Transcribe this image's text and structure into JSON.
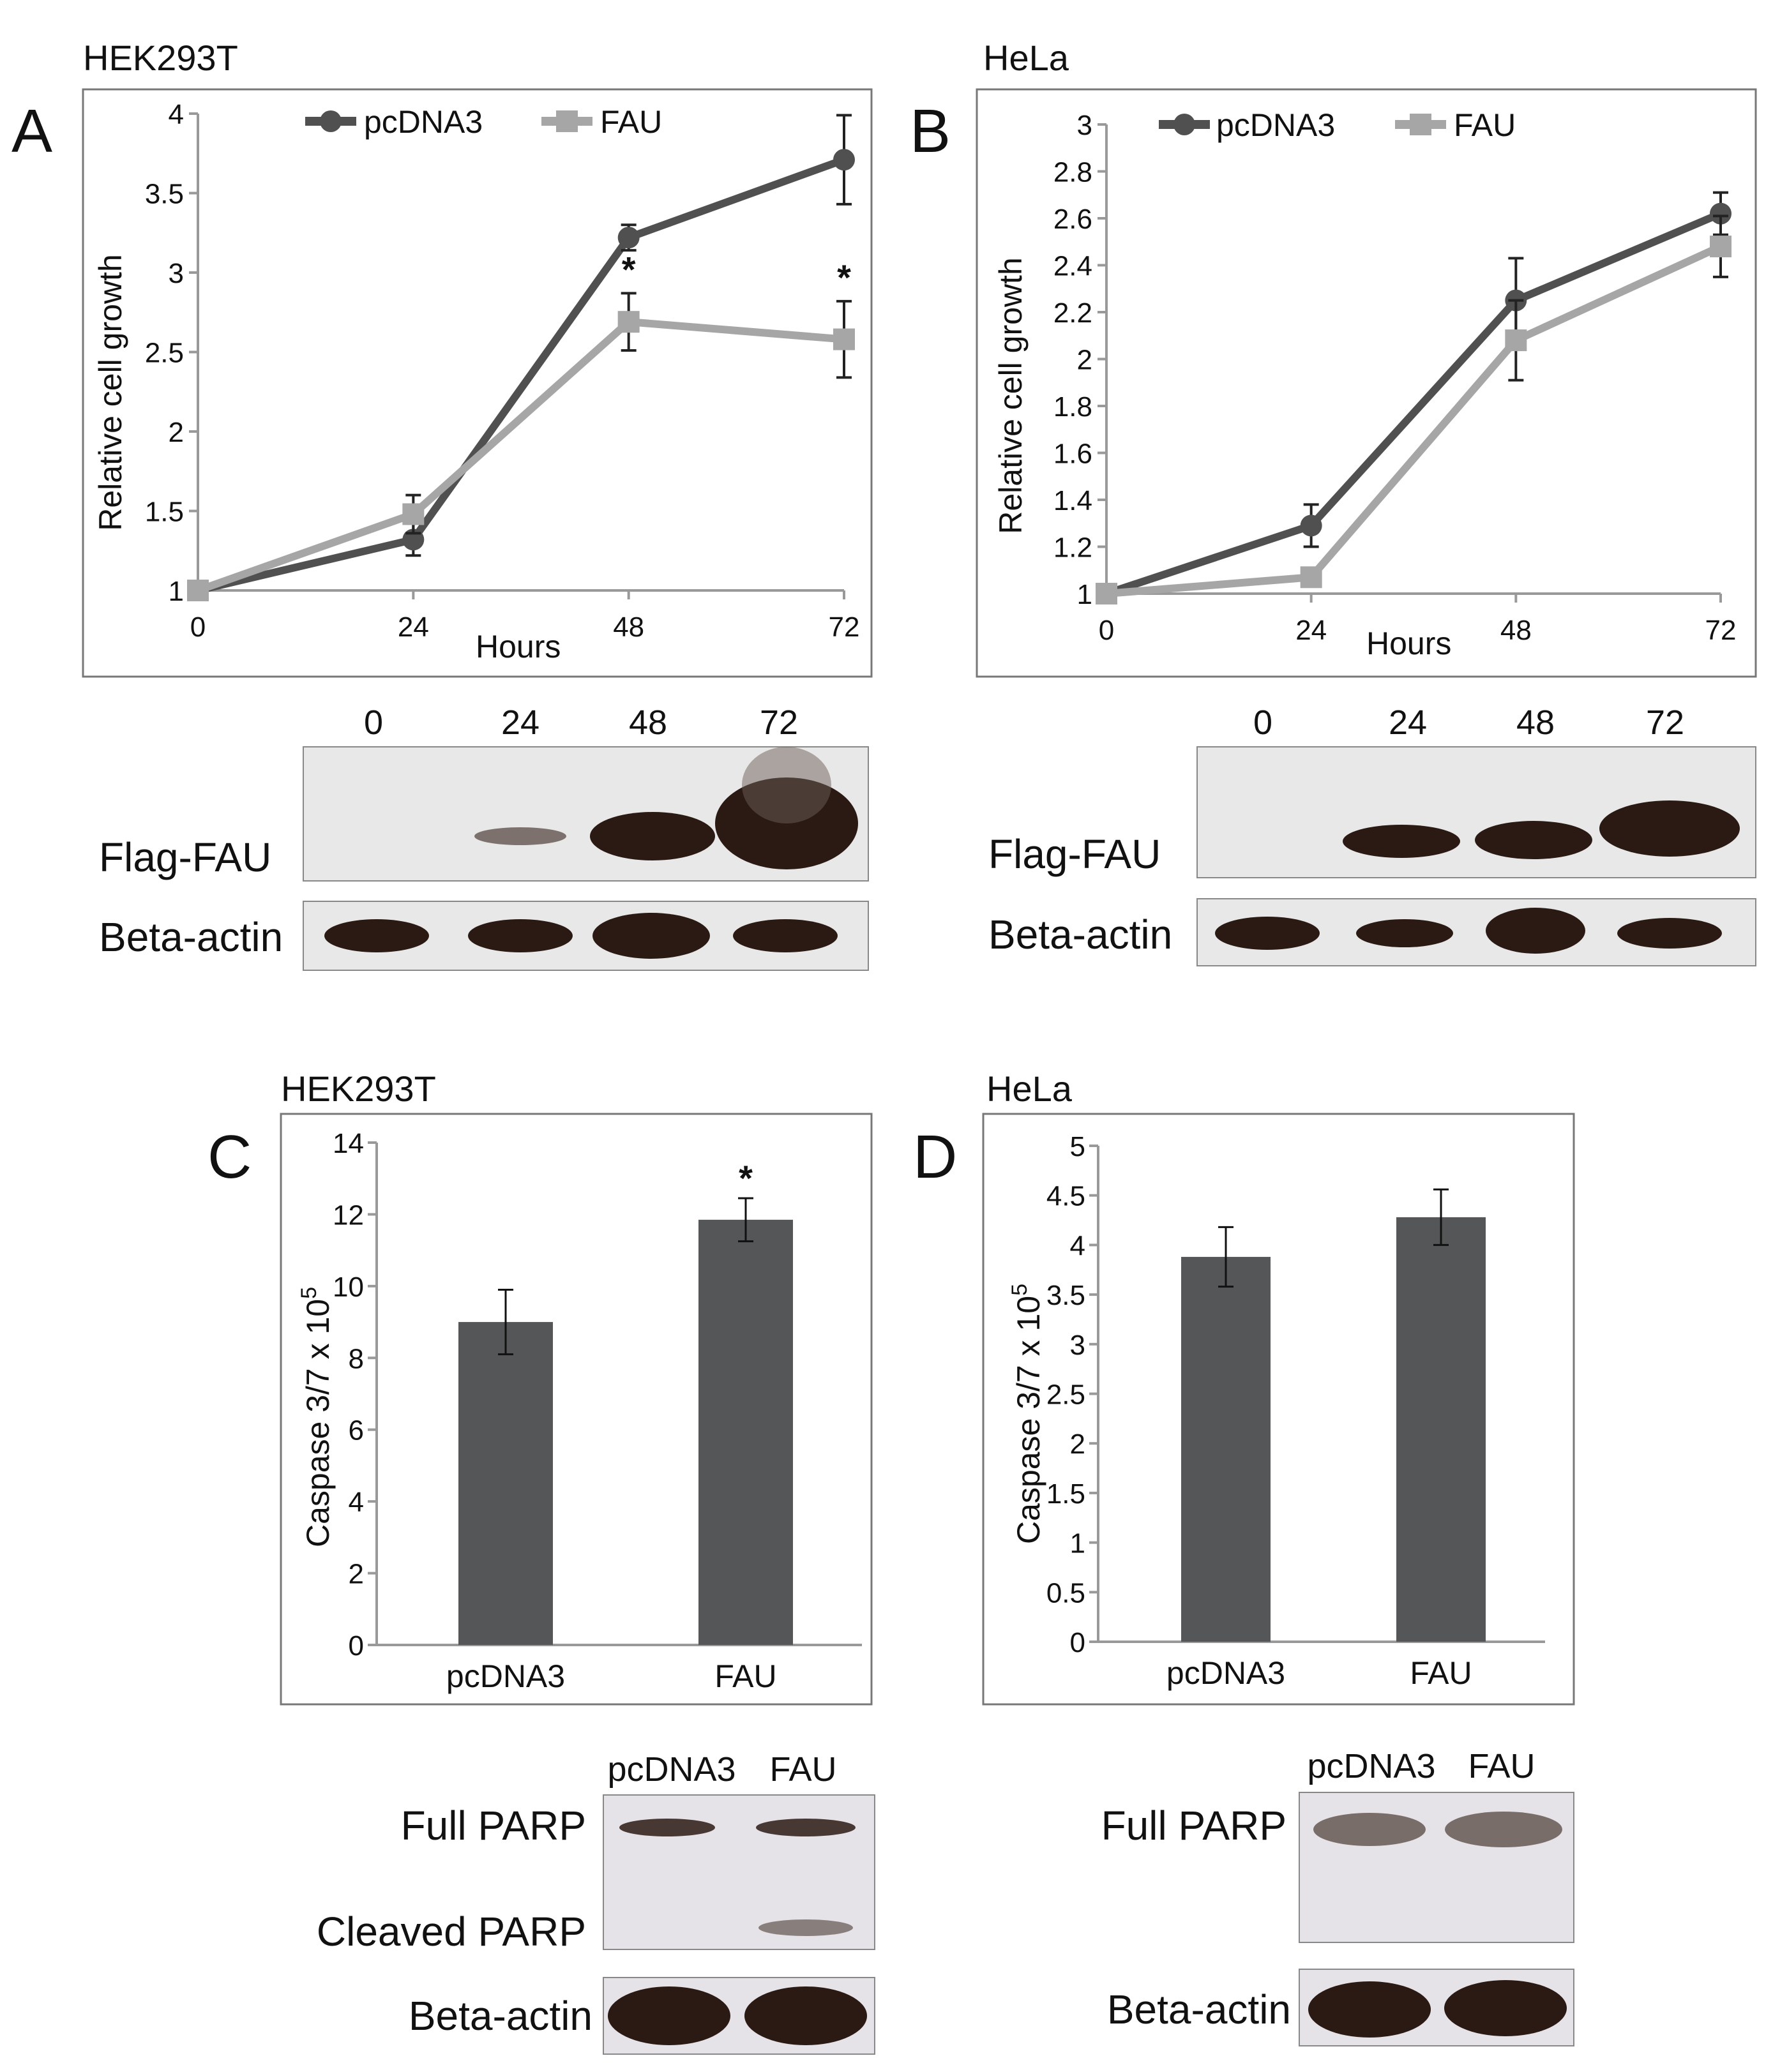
{
  "figure": {
    "colors": {
      "pcDNA3": "#505050",
      "FAU": "#a6a6a6",
      "bar": "#545658",
      "blot_bg_ab": "#e8e8e8",
      "blot_bg_cd": "#e6e3e8",
      "band": "#2b1a14"
    }
  },
  "panelA": {
    "letter": "A",
    "cell_line": "HEK293T",
    "legend": [
      "pcDNA3",
      "FAU"
    ],
    "xlabel": "Hours",
    "ylabel": "Relative cell growth",
    "blot": {
      "lanes": [
        "0",
        "24",
        "48",
        "72"
      ],
      "rows": [
        "Flag-FAU",
        "Beta-actin"
      ]
    }
  },
  "panelB": {
    "letter": "B",
    "cell_line": "HeLa",
    "legend": [
      "pcDNA3",
      "FAU"
    ],
    "xlabel": "Hours",
    "ylabel": "Relative cell growth",
    "blot": {
      "lanes": [
        "0",
        "24",
        "48",
        "72"
      ],
      "rows": [
        "Flag-FAU",
        "Beta-actin"
      ]
    }
  },
  "panelC": {
    "letter": "C",
    "cell_line": "HEK293T",
    "ylabel_main": "Caspase 3/7 x 10",
    "ylabel_sup": "5",
    "blot": {
      "lanes": [
        "pcDNA3",
        "FAU"
      ],
      "rows": [
        "Full PARP",
        "Cleaved PARP",
        "Beta-actin"
      ]
    }
  },
  "panelD": {
    "letter": "D",
    "cell_line": "HeLa",
    "ylabel_main": "Caspase 3/7 x 10",
    "ylabel_sup": "5",
    "blot": {
      "lanes": [
        "pcDNA3",
        "FAU"
      ],
      "rows": [
        "Full PARP",
        "Beta-actin"
      ]
    }
  },
  "chart_data": [
    {
      "panel": "A",
      "type": "line",
      "title": "HEK293T",
      "xlabel": "Hours",
      "ylabel": "Relative cell growth",
      "x": [
        0,
        24,
        48,
        72
      ],
      "xticks": [
        "0",
        "24",
        "48",
        "72"
      ],
      "ylim": [
        1,
        4
      ],
      "yticks": [
        "1",
        "1.5",
        "2",
        "2.5",
        "3",
        "3.5",
        "4"
      ],
      "legend_position": "top",
      "series": [
        {
          "name": "pcDNA3",
          "values": [
            1,
            1.32,
            3.22,
            3.71
          ],
          "errors": [
            0,
            0.1,
            0.08,
            0.28
          ],
          "marker": "circle",
          "color": "#505050"
        },
        {
          "name": "FAU",
          "values": [
            1,
            1.48,
            2.69,
            2.58
          ],
          "errors": [
            0,
            0.12,
            0.18,
            0.24
          ],
          "marker": "square",
          "color": "#a6a6a6"
        }
      ],
      "annotations": [
        {
          "x": 48,
          "text": "*"
        },
        {
          "x": 72,
          "text": "*"
        }
      ]
    },
    {
      "panel": "B",
      "type": "line",
      "title": "HeLa",
      "xlabel": "Hours",
      "ylabel": "Relative cell growth",
      "x": [
        0,
        24,
        48,
        72
      ],
      "xticks": [
        "0",
        "24",
        "48",
        "72"
      ],
      "ylim": [
        1,
        3
      ],
      "yticks": [
        "1",
        "1.2",
        "1.4",
        "1.6",
        "1.8",
        "2",
        "2.2",
        "2.4",
        "2.6",
        "2.8",
        "3"
      ],
      "legend_position": "top",
      "series": [
        {
          "name": "pcDNA3",
          "values": [
            1,
            1.29,
            2.25,
            2.62
          ],
          "errors": [
            0,
            0.09,
            0.18,
            0.09
          ],
          "marker": "circle",
          "color": "#505050"
        },
        {
          "name": "FAU",
          "values": [
            1,
            1.07,
            2.08,
            2.48
          ],
          "errors": [
            0,
            0.04,
            0.17,
            0.13
          ],
          "marker": "square",
          "color": "#a6a6a6"
        }
      ]
    },
    {
      "panel": "C",
      "type": "bar",
      "title": "HEK293T",
      "ylabel": "Caspase 3/7 x 10^5",
      "categories": [
        "pcDNA3",
        "FAU"
      ],
      "values": [
        9.0,
        11.85
      ],
      "errors": [
        0.9,
        0.6
      ],
      "ylim": [
        0,
        14
      ],
      "yticks": [
        "0",
        "2",
        "4",
        "6",
        "8",
        "10",
        "12",
        "14"
      ],
      "annotations": [
        {
          "category": "FAU",
          "text": "*"
        }
      ]
    },
    {
      "panel": "D",
      "type": "bar",
      "title": "HeLa",
      "ylabel": "Caspase 3/7 x 10^5",
      "categories": [
        "pcDNA3",
        "FAU"
      ],
      "values": [
        3.88,
        4.28
      ],
      "errors": [
        0.3,
        0.28
      ],
      "ylim": [
        0,
        5
      ],
      "yticks": [
        "0",
        "0.5",
        "1",
        "1.5",
        "2",
        "2.5",
        "3",
        "3.5",
        "4",
        "4.5",
        "5"
      ]
    }
  ]
}
